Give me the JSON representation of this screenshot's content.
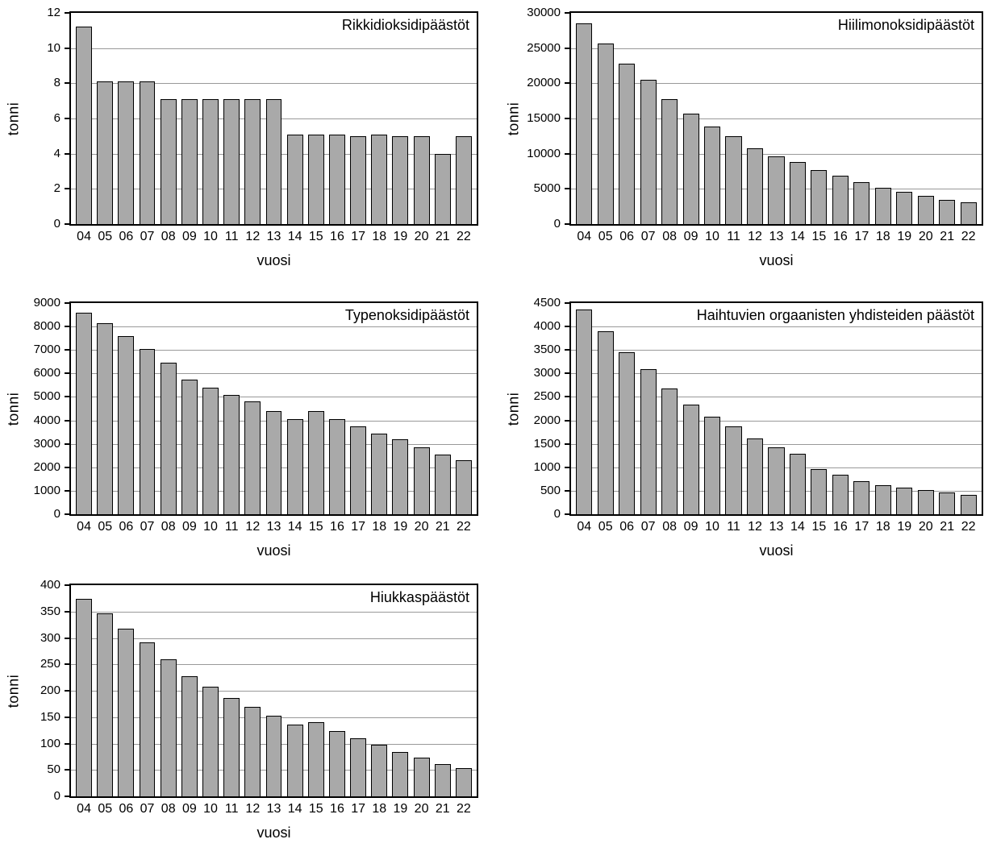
{
  "page": {
    "background": "#ffffff"
  },
  "colors": {
    "bar_fill": "#a9a9a9",
    "bar_border": "#000000",
    "gridline": "#999999",
    "axis": "#000000",
    "text": "#000000"
  },
  "chart_data": [
    {
      "type": "bar",
      "title": "Rikkidioksidipäästöt",
      "ylabel": "tonni",
      "xlabel": "vuosi",
      "ylim": [
        0,
        12
      ],
      "ytick_step": 2,
      "yticks": [
        0,
        2,
        4,
        6,
        8,
        10,
        12
      ],
      "grid": true,
      "legend": false,
      "categories": [
        "04",
        "05",
        "06",
        "07",
        "08",
        "09",
        "10",
        "11",
        "12",
        "13",
        "14",
        "15",
        "16",
        "17",
        "18",
        "19",
        "20",
        "21",
        "22"
      ],
      "values": [
        11.2,
        8.1,
        8.1,
        8.1,
        7.1,
        7.1,
        7.1,
        7.1,
        7.1,
        7.1,
        5.1,
        5.1,
        5.1,
        5.0,
        5.1,
        5.0,
        5.0,
        4.0,
        5.0
      ]
    },
    {
      "type": "bar",
      "title": "Hiilimonoksidipäästöt",
      "ylabel": "tonni",
      "xlabel": "vuosi",
      "ylim": [
        0,
        30000
      ],
      "ytick_step": 5000,
      "yticks": [
        0,
        5000,
        10000,
        15000,
        20000,
        25000,
        30000
      ],
      "grid": true,
      "legend": false,
      "categories": [
        "04",
        "05",
        "06",
        "07",
        "08",
        "09",
        "10",
        "11",
        "12",
        "13",
        "14",
        "15",
        "16",
        "17",
        "18",
        "19",
        "20",
        "21",
        "22"
      ],
      "values": [
        28500,
        25700,
        22800,
        20500,
        17800,
        15700,
        13900,
        12500,
        10800,
        9600,
        8800,
        7700,
        6900,
        5900,
        5200,
        4600,
        4000,
        3400,
        3100
      ]
    },
    {
      "type": "bar",
      "title": "Typenoksidipäästöt",
      "ylabel": "tonni",
      "xlabel": "vuosi",
      "ylim": [
        0,
        9000
      ],
      "ytick_step": 1000,
      "yticks": [
        0,
        1000,
        2000,
        3000,
        4000,
        5000,
        6000,
        7000,
        8000,
        9000
      ],
      "grid": true,
      "legend": false,
      "categories": [
        "04",
        "05",
        "06",
        "07",
        "08",
        "09",
        "10",
        "11",
        "12",
        "13",
        "14",
        "15",
        "16",
        "17",
        "18",
        "19",
        "20",
        "21",
        "22"
      ],
      "values": [
        8600,
        8150,
        7600,
        7050,
        6450,
        5750,
        5400,
        5100,
        4800,
        4400,
        4050,
        4400,
        4050,
        3750,
        3450,
        3200,
        2850,
        2550,
        2300
      ]
    },
    {
      "type": "bar",
      "title": "Haihtuvien orgaanisten yhdisteiden päästöt",
      "ylabel": "tonni",
      "xlabel": "vuosi",
      "ylim": [
        0,
        4500
      ],
      "ytick_step": 500,
      "yticks": [
        0,
        500,
        1000,
        1500,
        2000,
        2500,
        3000,
        3500,
        4000,
        4500
      ],
      "grid": true,
      "legend": false,
      "categories": [
        "04",
        "05",
        "06",
        "07",
        "08",
        "09",
        "10",
        "11",
        "12",
        "13",
        "14",
        "15",
        "16",
        "17",
        "18",
        "19",
        "20",
        "21",
        "22"
      ],
      "values": [
        4370,
        3900,
        3450,
        3090,
        2680,
        2330,
        2080,
        1880,
        1620,
        1430,
        1290,
        970,
        840,
        700,
        620,
        560,
        510,
        460,
        420
      ]
    },
    {
      "type": "bar",
      "title": "Hiukkaspäästöt",
      "ylabel": "tonni",
      "xlabel": "vuosi",
      "ylim": [
        0,
        400
      ],
      "ytick_step": 50,
      "yticks": [
        0,
        50,
        100,
        150,
        200,
        250,
        300,
        350,
        400
      ],
      "grid": true,
      "legend": false,
      "categories": [
        "04",
        "05",
        "06",
        "07",
        "08",
        "09",
        "10",
        "11",
        "12",
        "13",
        "14",
        "15",
        "16",
        "17",
        "18",
        "19",
        "20",
        "21",
        "22"
      ],
      "values": [
        374,
        346,
        318,
        291,
        259,
        227,
        208,
        187,
        169,
        153,
        136,
        141,
        124,
        110,
        98,
        84,
        73,
        61,
        53
      ]
    }
  ]
}
